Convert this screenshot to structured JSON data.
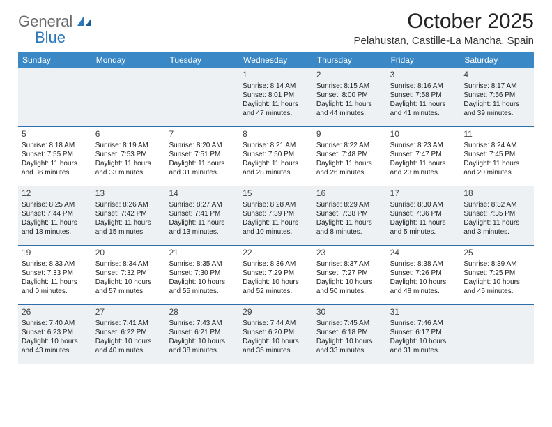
{
  "brand": {
    "textGray": "General",
    "textBlue": "Blue"
  },
  "title": "October 2025",
  "location": "Pelahustan, Castille-La Mancha, Spain",
  "colors": {
    "headerBg": "#3b88c6",
    "headerText": "#ffffff",
    "rowBorder": "#2f6ea8",
    "shade": "#eef1f3",
    "bg": "#ffffff",
    "text": "#222222",
    "logoGray": "#6b6b6b",
    "logoBlue": "#2a77bb"
  },
  "dayNames": [
    "Sunday",
    "Monday",
    "Tuesday",
    "Wednesday",
    "Thursday",
    "Friday",
    "Saturday"
  ],
  "weeks": [
    [
      {
        "day": "",
        "sunrise": "",
        "sunset": "",
        "daylight": ""
      },
      {
        "day": "",
        "sunrise": "",
        "sunset": "",
        "daylight": ""
      },
      {
        "day": "",
        "sunrise": "",
        "sunset": "",
        "daylight": ""
      },
      {
        "day": "1",
        "sunrise": "Sunrise: 8:14 AM",
        "sunset": "Sunset: 8:01 PM",
        "daylight": "Daylight: 11 hours and 47 minutes."
      },
      {
        "day": "2",
        "sunrise": "Sunrise: 8:15 AM",
        "sunset": "Sunset: 8:00 PM",
        "daylight": "Daylight: 11 hours and 44 minutes."
      },
      {
        "day": "3",
        "sunrise": "Sunrise: 8:16 AM",
        "sunset": "Sunset: 7:58 PM",
        "daylight": "Daylight: 11 hours and 41 minutes."
      },
      {
        "day": "4",
        "sunrise": "Sunrise: 8:17 AM",
        "sunset": "Sunset: 7:56 PM",
        "daylight": "Daylight: 11 hours and 39 minutes."
      }
    ],
    [
      {
        "day": "5",
        "sunrise": "Sunrise: 8:18 AM",
        "sunset": "Sunset: 7:55 PM",
        "daylight": "Daylight: 11 hours and 36 minutes."
      },
      {
        "day": "6",
        "sunrise": "Sunrise: 8:19 AM",
        "sunset": "Sunset: 7:53 PM",
        "daylight": "Daylight: 11 hours and 33 minutes."
      },
      {
        "day": "7",
        "sunrise": "Sunrise: 8:20 AM",
        "sunset": "Sunset: 7:51 PM",
        "daylight": "Daylight: 11 hours and 31 minutes."
      },
      {
        "day": "8",
        "sunrise": "Sunrise: 8:21 AM",
        "sunset": "Sunset: 7:50 PM",
        "daylight": "Daylight: 11 hours and 28 minutes."
      },
      {
        "day": "9",
        "sunrise": "Sunrise: 8:22 AM",
        "sunset": "Sunset: 7:48 PM",
        "daylight": "Daylight: 11 hours and 26 minutes."
      },
      {
        "day": "10",
        "sunrise": "Sunrise: 8:23 AM",
        "sunset": "Sunset: 7:47 PM",
        "daylight": "Daylight: 11 hours and 23 minutes."
      },
      {
        "day": "11",
        "sunrise": "Sunrise: 8:24 AM",
        "sunset": "Sunset: 7:45 PM",
        "daylight": "Daylight: 11 hours and 20 minutes."
      }
    ],
    [
      {
        "day": "12",
        "sunrise": "Sunrise: 8:25 AM",
        "sunset": "Sunset: 7:44 PM",
        "daylight": "Daylight: 11 hours and 18 minutes."
      },
      {
        "day": "13",
        "sunrise": "Sunrise: 8:26 AM",
        "sunset": "Sunset: 7:42 PM",
        "daylight": "Daylight: 11 hours and 15 minutes."
      },
      {
        "day": "14",
        "sunrise": "Sunrise: 8:27 AM",
        "sunset": "Sunset: 7:41 PM",
        "daylight": "Daylight: 11 hours and 13 minutes."
      },
      {
        "day": "15",
        "sunrise": "Sunrise: 8:28 AM",
        "sunset": "Sunset: 7:39 PM",
        "daylight": "Daylight: 11 hours and 10 minutes."
      },
      {
        "day": "16",
        "sunrise": "Sunrise: 8:29 AM",
        "sunset": "Sunset: 7:38 PM",
        "daylight": "Daylight: 11 hours and 8 minutes."
      },
      {
        "day": "17",
        "sunrise": "Sunrise: 8:30 AM",
        "sunset": "Sunset: 7:36 PM",
        "daylight": "Daylight: 11 hours and 5 minutes."
      },
      {
        "day": "18",
        "sunrise": "Sunrise: 8:32 AM",
        "sunset": "Sunset: 7:35 PM",
        "daylight": "Daylight: 11 hours and 3 minutes."
      }
    ],
    [
      {
        "day": "19",
        "sunrise": "Sunrise: 8:33 AM",
        "sunset": "Sunset: 7:33 PM",
        "daylight": "Daylight: 11 hours and 0 minutes."
      },
      {
        "day": "20",
        "sunrise": "Sunrise: 8:34 AM",
        "sunset": "Sunset: 7:32 PM",
        "daylight": "Daylight: 10 hours and 57 minutes."
      },
      {
        "day": "21",
        "sunrise": "Sunrise: 8:35 AM",
        "sunset": "Sunset: 7:30 PM",
        "daylight": "Daylight: 10 hours and 55 minutes."
      },
      {
        "day": "22",
        "sunrise": "Sunrise: 8:36 AM",
        "sunset": "Sunset: 7:29 PM",
        "daylight": "Daylight: 10 hours and 52 minutes."
      },
      {
        "day": "23",
        "sunrise": "Sunrise: 8:37 AM",
        "sunset": "Sunset: 7:27 PM",
        "daylight": "Daylight: 10 hours and 50 minutes."
      },
      {
        "day": "24",
        "sunrise": "Sunrise: 8:38 AM",
        "sunset": "Sunset: 7:26 PM",
        "daylight": "Daylight: 10 hours and 48 minutes."
      },
      {
        "day": "25",
        "sunrise": "Sunrise: 8:39 AM",
        "sunset": "Sunset: 7:25 PM",
        "daylight": "Daylight: 10 hours and 45 minutes."
      }
    ],
    [
      {
        "day": "26",
        "sunrise": "Sunrise: 7:40 AM",
        "sunset": "Sunset: 6:23 PM",
        "daylight": "Daylight: 10 hours and 43 minutes."
      },
      {
        "day": "27",
        "sunrise": "Sunrise: 7:41 AM",
        "sunset": "Sunset: 6:22 PM",
        "daylight": "Daylight: 10 hours and 40 minutes."
      },
      {
        "day": "28",
        "sunrise": "Sunrise: 7:43 AM",
        "sunset": "Sunset: 6:21 PM",
        "daylight": "Daylight: 10 hours and 38 minutes."
      },
      {
        "day": "29",
        "sunrise": "Sunrise: 7:44 AM",
        "sunset": "Sunset: 6:20 PM",
        "daylight": "Daylight: 10 hours and 35 minutes."
      },
      {
        "day": "30",
        "sunrise": "Sunrise: 7:45 AM",
        "sunset": "Sunset: 6:18 PM",
        "daylight": "Daylight: 10 hours and 33 minutes."
      },
      {
        "day": "31",
        "sunrise": "Sunrise: 7:46 AM",
        "sunset": "Sunset: 6:17 PM",
        "daylight": "Daylight: 10 hours and 31 minutes."
      },
      {
        "day": "",
        "sunrise": "",
        "sunset": "",
        "daylight": ""
      }
    ]
  ]
}
